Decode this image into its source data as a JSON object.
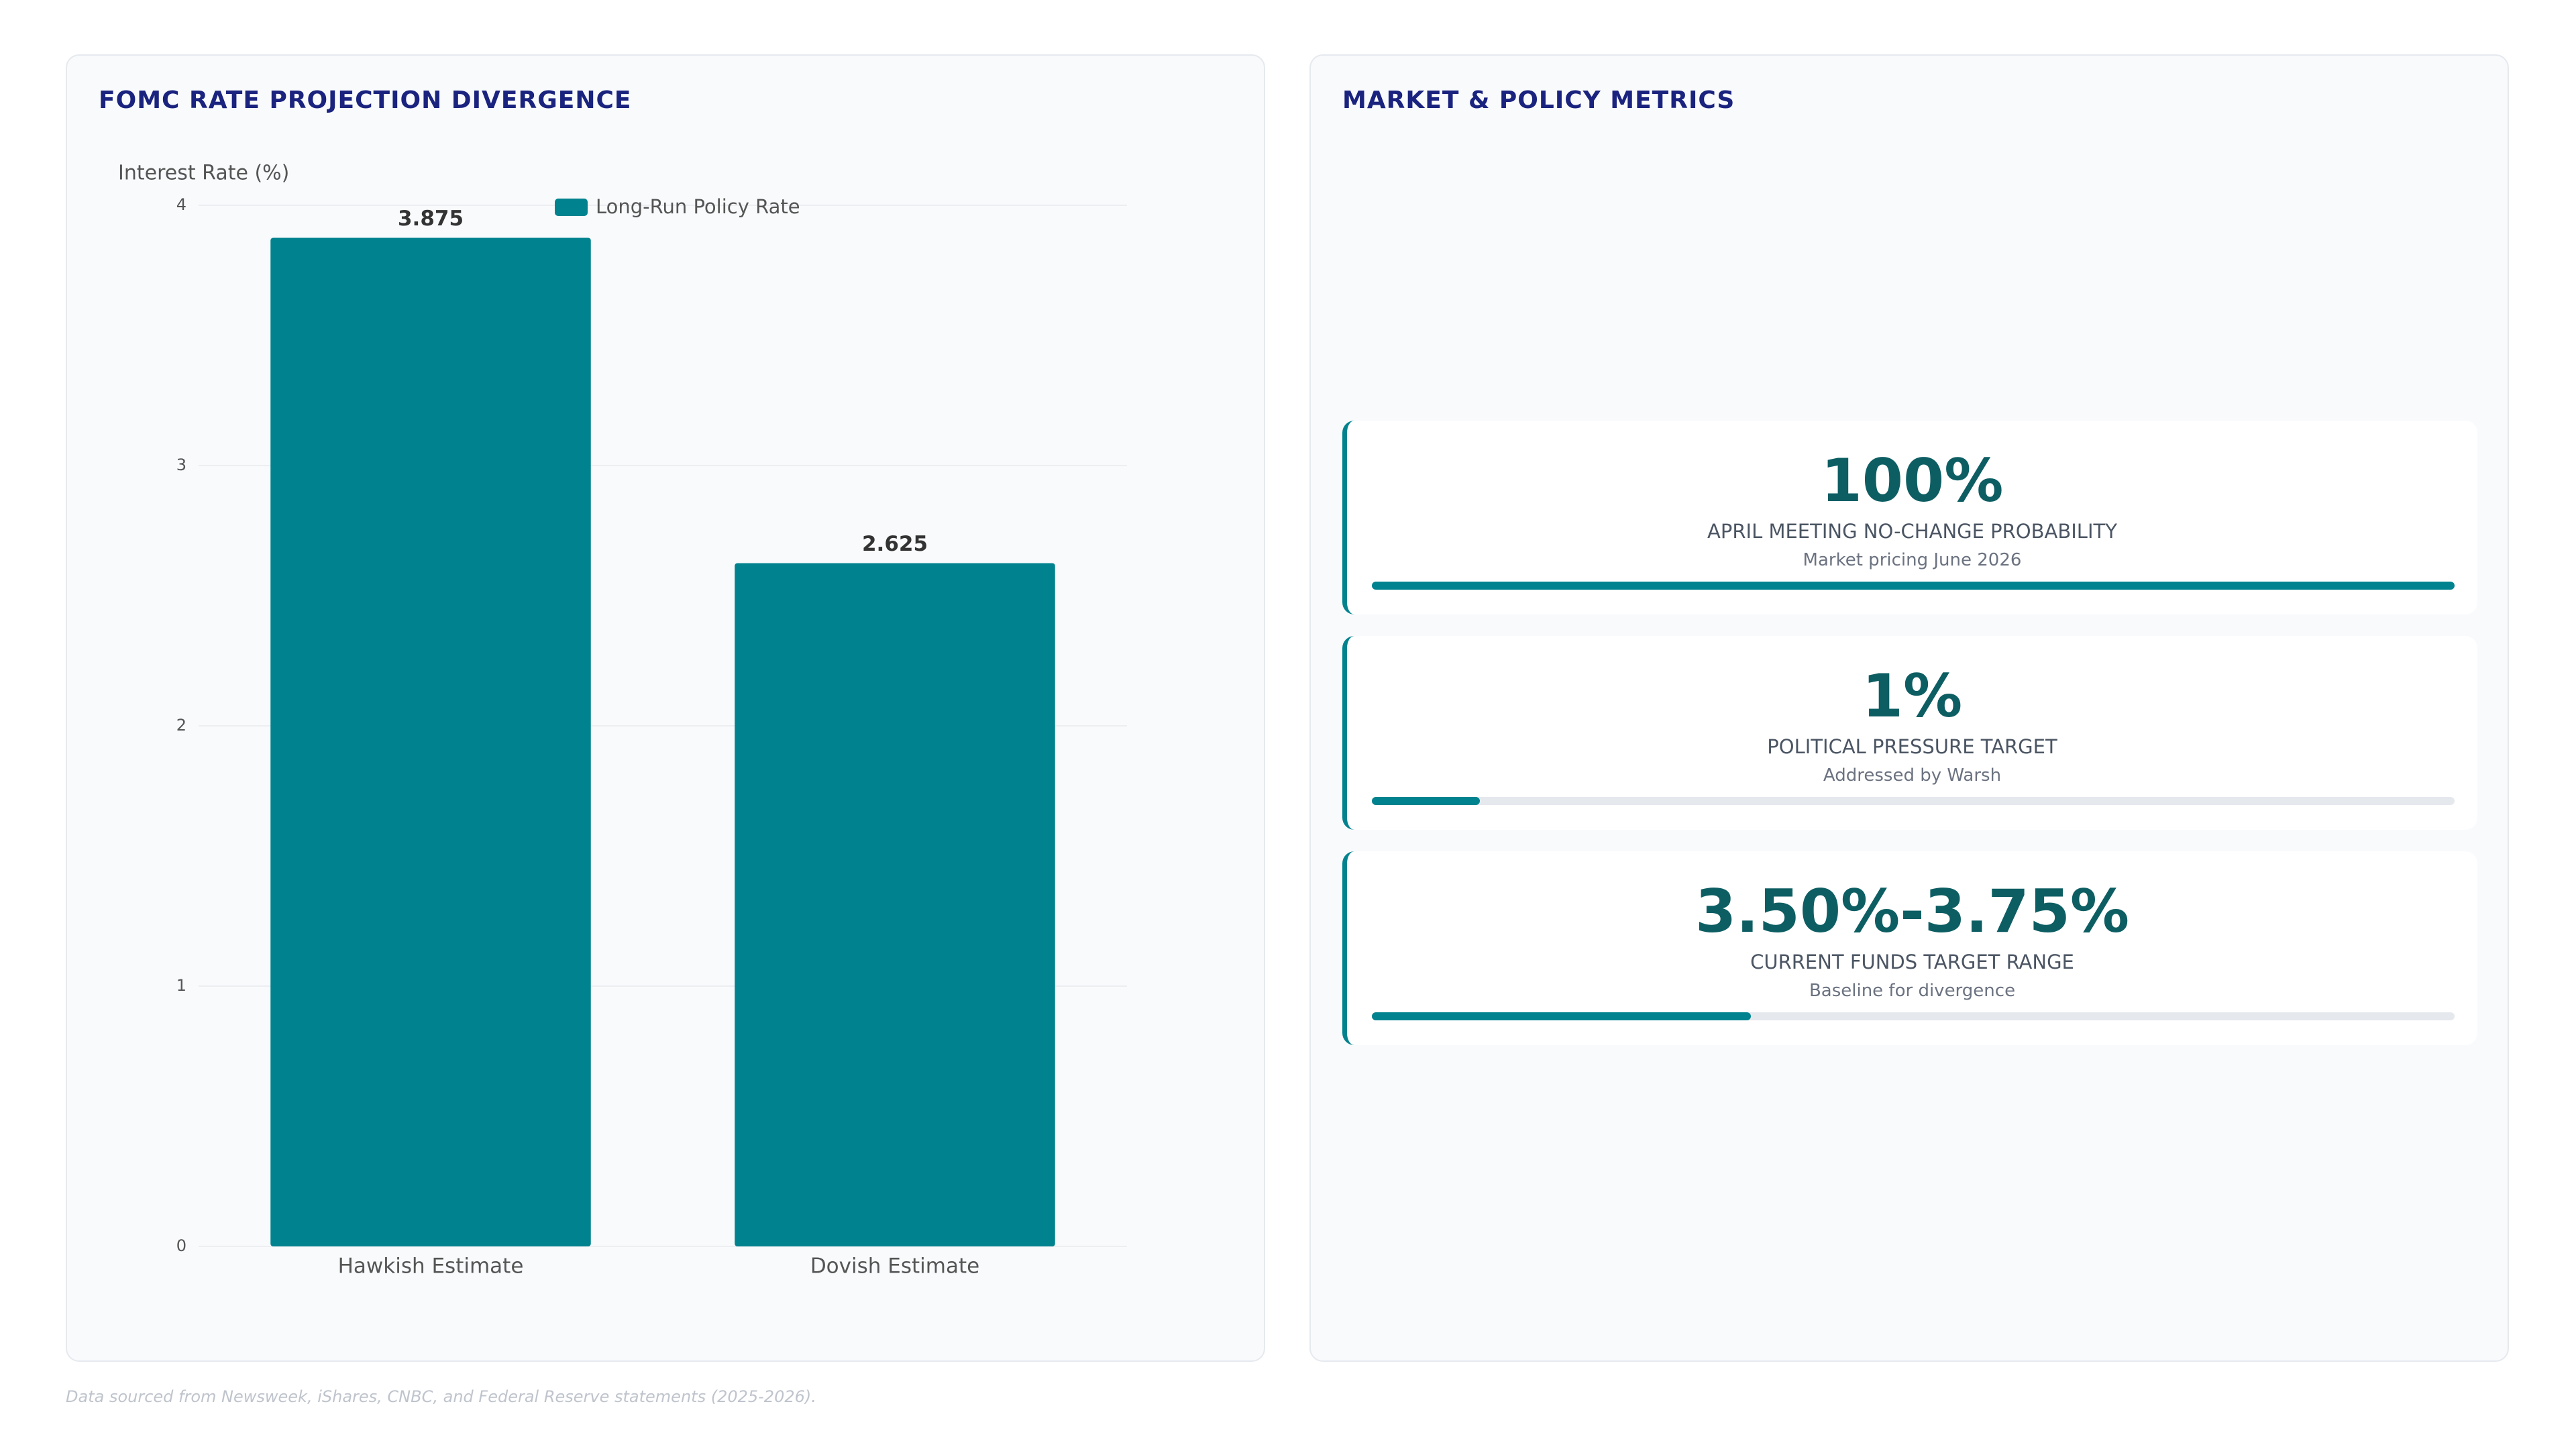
{
  "chart_data": {
    "type": "bar",
    "title": "FOMC RATE PROJECTION DIVERGENCE",
    "y_label": "Interest Rate (%)",
    "categories": [
      "Hawkish Estimate",
      "Dovish Estimate"
    ],
    "series": [
      {
        "name": "Long-Run Policy Rate",
        "color": "#00838f",
        "values": [
          3.875,
          2.625
        ]
      }
    ],
    "ylim": [
      0,
      4
    ],
    "yticks": [
      0,
      1,
      2,
      3,
      4
    ],
    "grid": true,
    "legend": "top"
  },
  "metrics": {
    "title": "MARKET & POLICY METRICS",
    "items": [
      {
        "value": "100%",
        "label": "APRIL MEETING NO-CHANGE PROBABILITY",
        "note": "Market pricing June 2026",
        "progress": 100
      },
      {
        "value": "1%",
        "label": "POLITICAL PRESSURE TARGET",
        "note": "Addressed by Warsh",
        "progress": 10
      },
      {
        "value": "3.50%-3.75%",
        "label": "CURRENT FUNDS TARGET RANGE",
        "note": "Baseline for divergence",
        "progress": 35
      }
    ]
  },
  "footer": "Data sourced from Newsweek, iShares, CNBC, and Federal Reserve statements (2025-2026)."
}
